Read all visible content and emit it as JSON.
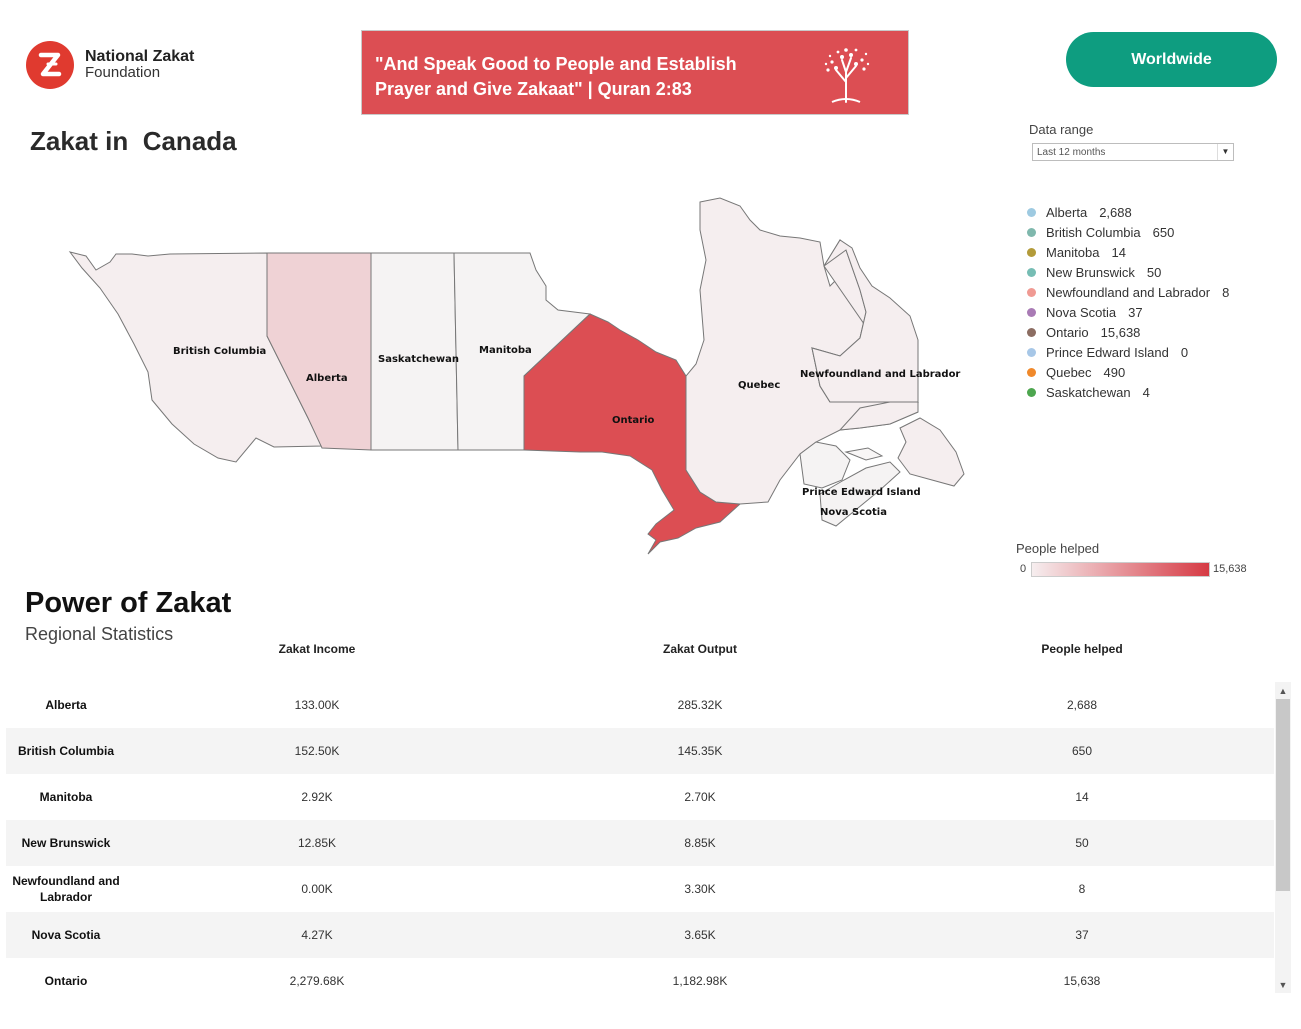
{
  "header": {
    "logo_line1": "National Zakat",
    "logo_line2": "Foundation",
    "banner_text": "\"And Speak Good to People and Establish Prayer and Give Zakaat\" | Quran 2:83",
    "worldwide_label": "Worldwide"
  },
  "map_section": {
    "title": "Zakat in  Canada",
    "data_range_label": "Data range",
    "data_range_value": "Last 12 months",
    "scale_label": "People helped",
    "scale_min": "0",
    "scale_max": "15,638",
    "provinces": {
      "british_columbia": "British Columbia",
      "alberta": "Alberta",
      "saskatchewan": "Saskatchewan",
      "manitoba": "Manitoba",
      "ontario": "Ontario",
      "quebec": "Quebec",
      "newfoundland": "Newfoundland and Labrador",
      "pei": "Prince Edward Island",
      "nova_scotia": "Nova Scotia"
    }
  },
  "legend": [
    {
      "name": "Alberta",
      "value": "2,688",
      "color": "#9ecae1"
    },
    {
      "name": "British Columbia",
      "value": "650",
      "color": "#7fb8ad"
    },
    {
      "name": "Manitoba",
      "value": "14",
      "color": "#b39b3a"
    },
    {
      "name": "New Brunswick",
      "value": "50",
      "color": "#76bdb4"
    },
    {
      "name": "Newfoundland and Labrador",
      "value": "8",
      "color": "#f09a93"
    },
    {
      "name": "Nova Scotia",
      "value": "37",
      "color": "#a97bb5"
    },
    {
      "name": "Ontario",
      "value": "15,638",
      "color": "#8c6d62"
    },
    {
      "name": "Prince Edward Island",
      "value": "0",
      "color": "#a7c7e7"
    },
    {
      "name": "Quebec",
      "value": "490",
      "color": "#f0892b"
    },
    {
      "name": "Saskatchewan",
      "value": "4",
      "color": "#4da64f"
    }
  ],
  "stats": {
    "title": "Power of Zakat",
    "subtitle": "Regional Statistics",
    "columns": [
      "Zakat Income",
      "Zakat Output",
      "People helped"
    ],
    "rows": [
      {
        "region": "Alberta",
        "income": "133.00K",
        "output": "285.32K",
        "people": "2,688"
      },
      {
        "region": "British Columbia",
        "income": "152.50K",
        "output": "145.35K",
        "people": "650"
      },
      {
        "region": "Manitoba",
        "income": "2.92K",
        "output": "2.70K",
        "people": "14"
      },
      {
        "region": "New Brunswick",
        "income": "12.85K",
        "output": "8.85K",
        "people": "50"
      },
      {
        "region": "Newfoundland and Labrador",
        "income": "0.00K",
        "output": "3.30K",
        "people": "8"
      },
      {
        "region": "Nova Scotia",
        "income": "4.27K",
        "output": "3.65K",
        "people": "37"
      },
      {
        "region": "Ontario",
        "income": "2,279.68K",
        "output": "1,182.98K",
        "people": "15,638"
      }
    ]
  }
}
